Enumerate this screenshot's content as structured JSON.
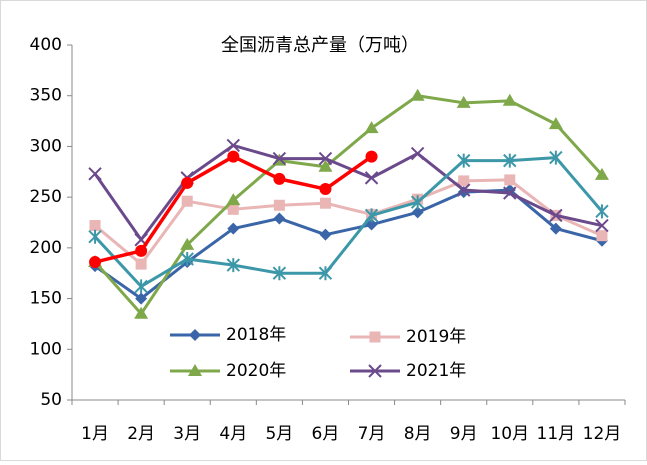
{
  "chart_data": {
    "type": "line",
    "title": "全国沥青总产量（万吨）",
    "categories": [
      "1月",
      "2月",
      "3月",
      "4月",
      "5月",
      "6月",
      "7月",
      "8月",
      "9月",
      "10月",
      "11月",
      "12月"
    ],
    "series": [
      {
        "name": "2018年",
        "color": "#3a65a8",
        "marker": "diamond",
        "values": [
          182,
          150,
          186,
          219,
          229,
          213,
          223,
          235,
          255,
          257,
          219,
          207
        ]
      },
      {
        "name": "2019年",
        "color": "#eab5b5",
        "marker": "square",
        "values": [
          222,
          184,
          246,
          238,
          242,
          244,
          233,
          248,
          266,
          267,
          232,
          212
        ]
      },
      {
        "name": "2020年",
        "color": "#7fa84a",
        "marker": "triangle",
        "values": [
          186,
          135,
          203,
          247,
          286,
          280,
          318,
          350,
          343,
          345,
          322,
          272
        ]
      },
      {
        "name": "2021年",
        "color": "#6b4a8c",
        "marker": "x",
        "values": [
          273,
          208,
          269,
          301,
          288,
          288,
          269,
          293,
          257,
          254,
          232,
          222
        ]
      },
      {
        "color": "#3c98a8",
        "marker": "star",
        "values": [
          211,
          162,
          189,
          183,
          175,
          175,
          232,
          245,
          286,
          286,
          289,
          236
        ]
      },
      {
        "color": "#ff0000",
        "marker": "circle",
        "values": [
          186,
          197,
          264,
          290,
          268,
          258,
          290,
          null,
          null,
          null,
          null,
          null
        ]
      }
    ],
    "ylim": [
      50,
      400
    ],
    "yticks": [
      50,
      100,
      150,
      200,
      250,
      300,
      350,
      400
    ],
    "grid": false
  }
}
